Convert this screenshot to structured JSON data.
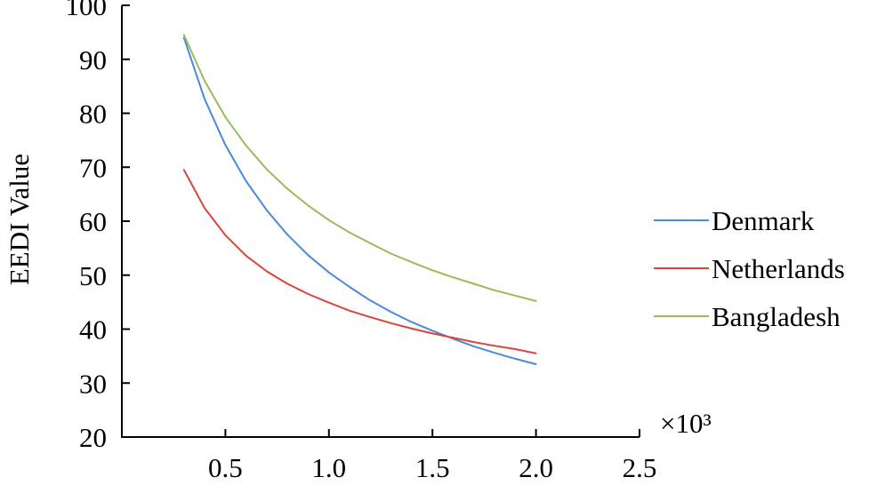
{
  "chart_data": {
    "type": "line",
    "ylabel": "EEDI Value",
    "x_multiplier_label": "×10³",
    "xlim": [
      0,
      2.5
    ],
    "ylim": [
      20,
      100
    ],
    "x_ticks": [
      {
        "value": 0.5,
        "label": "0.5"
      },
      {
        "value": 1.0,
        "label": "1.0"
      },
      {
        "value": 1.5,
        "label": "1.5"
      },
      {
        "value": 2.0,
        "label": "2.0"
      },
      {
        "value": 2.5,
        "label": "2.5"
      }
    ],
    "y_ticks": [
      {
        "value": 20,
        "label": "20"
      },
      {
        "value": 30,
        "label": "30"
      },
      {
        "value": 40,
        "label": "40"
      },
      {
        "value": 50,
        "label": "50"
      },
      {
        "value": 60,
        "label": "60"
      },
      {
        "value": 70,
        "label": "70"
      },
      {
        "value": 80,
        "label": "80"
      },
      {
        "value": 90,
        "label": "90"
      },
      {
        "value": 100,
        "label": "100"
      }
    ],
    "grid": false,
    "legend_position": "right",
    "series": [
      {
        "name": "Denmark",
        "color": "#4a8ad8",
        "x": [
          0.3,
          0.4,
          0.5,
          0.6,
          0.7,
          0.8,
          0.9,
          1.0,
          1.1,
          1.2,
          1.3,
          1.4,
          1.5,
          1.6,
          1.7,
          1.8,
          1.9,
          2.0
        ],
        "y": [
          94.0,
          82.6,
          74.1,
          67.4,
          62.0,
          57.5,
          53.7,
          50.5,
          47.8,
          45.3,
          43.2,
          41.3,
          39.7,
          38.2,
          36.8,
          35.6,
          34.5,
          33.5
        ]
      },
      {
        "name": "Netherlands",
        "color": "#d9443c",
        "x": [
          0.3,
          0.4,
          0.5,
          0.6,
          0.7,
          0.8,
          0.9,
          1.0,
          1.1,
          1.2,
          1.3,
          1.4,
          1.5,
          1.6,
          1.7,
          1.8,
          1.9,
          2.0
        ],
        "y": [
          69.5,
          62.4,
          57.4,
          53.6,
          50.7,
          48.4,
          46.5,
          44.9,
          43.4,
          42.2,
          41.1,
          40.1,
          39.2,
          38.4,
          37.6,
          36.9,
          36.3,
          35.5
        ]
      },
      {
        "name": "Bangladesh",
        "color": "#9bbb59",
        "x": [
          0.3,
          0.4,
          0.5,
          0.6,
          0.7,
          0.8,
          0.9,
          1.0,
          1.1,
          1.2,
          1.3,
          1.4,
          1.5,
          1.6,
          1.7,
          1.8,
          1.9,
          2.0
        ],
        "y": [
          94.5,
          86.0,
          79.3,
          74.0,
          69.6,
          66.0,
          62.9,
          60.2,
          57.9,
          55.9,
          54.0,
          52.4,
          50.9,
          49.6,
          48.4,
          47.2,
          46.2,
          45.2
        ]
      }
    ]
  }
}
